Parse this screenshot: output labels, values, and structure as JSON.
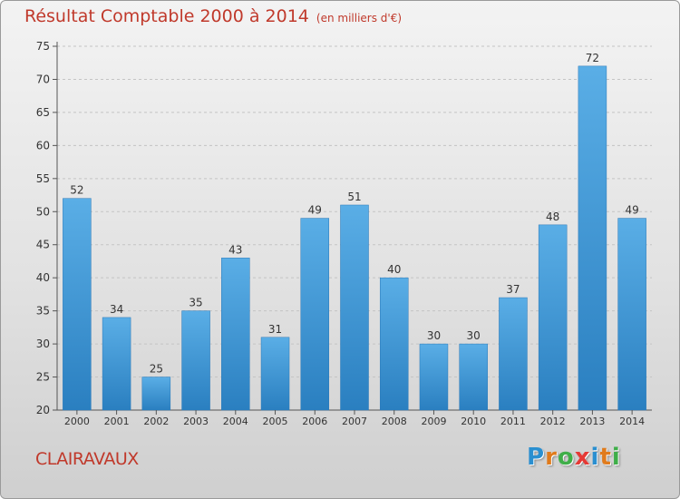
{
  "header": {
    "title": "Résultat Comptable 2000 à 2014",
    "subtitle": "(en milliers d'€)"
  },
  "footer": {
    "commune": "CLAIRAVAUX",
    "logo": [
      "P",
      "r",
      "o",
      "x",
      "i",
      "t",
      "i"
    ],
    "logo_colors": [
      "#2a8fd0",
      "#e07b1c",
      "#3fae49",
      "#e53935",
      "#2a8fd0",
      "#e07b1c",
      "#3fae49"
    ]
  },
  "chart_data": {
    "type": "bar",
    "title": "Résultat Comptable 2000 à 2014",
    "subtitle": "(en milliers d'€)",
    "categories": [
      "2000",
      "2001",
      "2002",
      "2003",
      "2004",
      "2005",
      "2006",
      "2007",
      "2008",
      "2009",
      "2010",
      "2011",
      "2012",
      "2013",
      "2014"
    ],
    "values": [
      52,
      34,
      25,
      35,
      43,
      31,
      49,
      51,
      40,
      30,
      30,
      37,
      48,
      72,
      49
    ],
    "ylim": [
      20,
      75
    ],
    "yticks": [
      20,
      25,
      30,
      35,
      40,
      45,
      50,
      55,
      60,
      65,
      70,
      75
    ],
    "grid": true,
    "bar_color": "#3c98d8",
    "bar_color_light": "#5aaee6",
    "bar_color_dark": "#2a7fc0"
  }
}
